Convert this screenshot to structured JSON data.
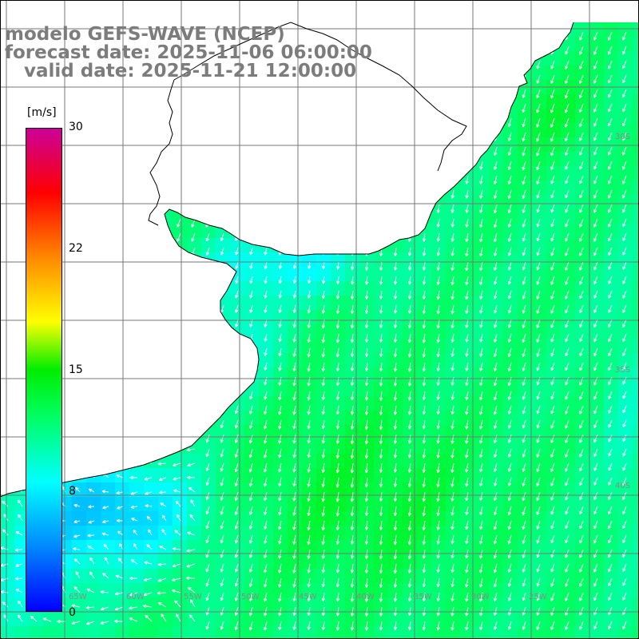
{
  "header": {
    "line1": "modelo GEFS-WAVE (NCEP)",
    "line2": "forecast date: 2025-11-06 06:00:00",
    "line3": "   valid date: 2025-11-21 12:00:00"
  },
  "legend": {
    "unit": "[m/s]",
    "ticks": [
      "30",
      "22",
      "15",
      "8",
      "0"
    ],
    "tick_values": [
      30,
      22,
      15,
      8,
      0
    ],
    "min": 0,
    "max": 30,
    "stops": [
      {
        "v": 0,
        "color": "#0000ff"
      },
      {
        "v": 4,
        "color": "#0088ff"
      },
      {
        "v": 8,
        "color": "#00ffff"
      },
      {
        "v": 12,
        "color": "#00ff66"
      },
      {
        "v": 15,
        "color": "#00ee00"
      },
      {
        "v": 18,
        "color": "#ffff00"
      },
      {
        "v": 22,
        "color": "#ff8800"
      },
      {
        "v": 26,
        "color": "#ff0000"
      },
      {
        "v": 30,
        "color": "#cc0099"
      }
    ]
  },
  "lat_labels": [
    "30S",
    "35S",
    "40S"
  ],
  "lon_labels": [
    "65W",
    "60W",
    "55W",
    "50W",
    "45W",
    "40W",
    "35W",
    "30W",
    "25W"
  ],
  "colors": {
    "land": "#ffffff",
    "grid": "#777777",
    "coast": "#000000",
    "arrow": "#ffffff"
  }
}
